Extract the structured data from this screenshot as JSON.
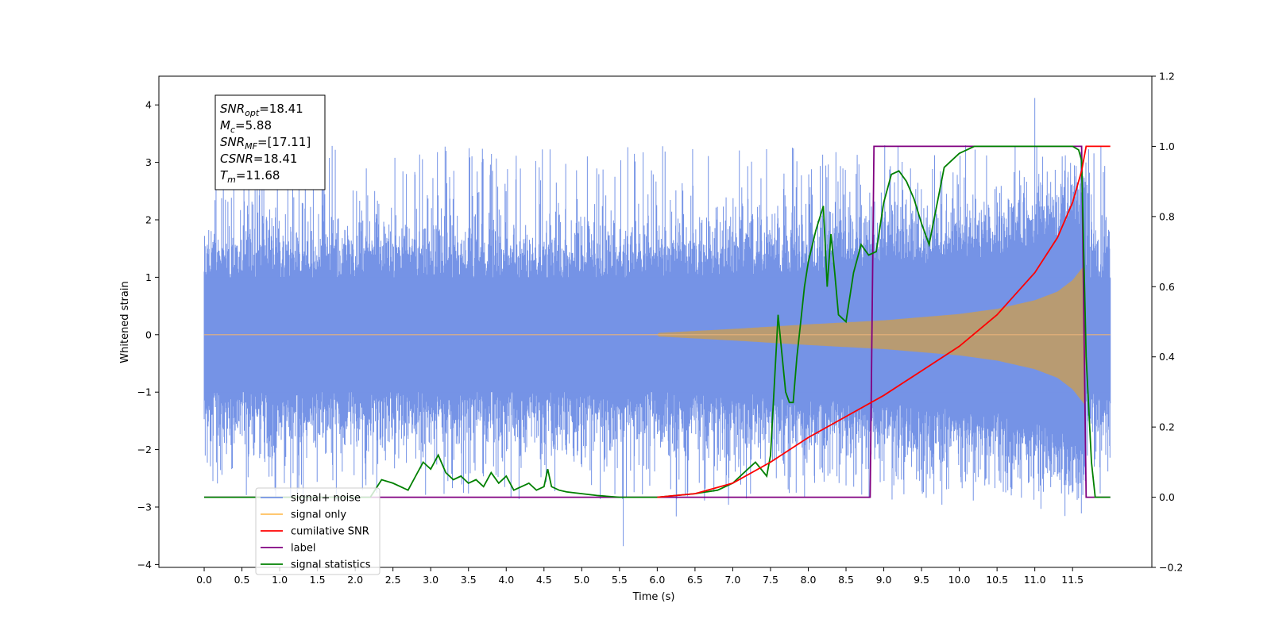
{
  "chart_data": {
    "type": "line",
    "title": "",
    "xlabel": "Time (s)",
    "ylabel": "Whitened strain",
    "ylabel_right": "",
    "xlim": [
      -0.6,
      12.55
    ],
    "ylim": [
      -4.05,
      4.5
    ],
    "ylim_right": [
      -0.2,
      1.2
    ],
    "x_ticks": [
      0,
      0.5,
      1,
      1.5,
      2,
      2.5,
      3,
      3.5,
      4,
      4.5,
      5,
      5.5,
      6,
      6.5,
      7,
      7.5,
      8,
      8.5,
      9,
      9.5,
      10,
      10.5,
      11,
      11.5
    ],
    "x_tick_labels": [
      "0.0",
      "0.5",
      "1.0",
      "1.5",
      "2.0",
      "2.5",
      "3.0",
      "3.5",
      "4.0",
      "4.5",
      "5.0",
      "5.5",
      "6.0",
      "6.5",
      "7.0",
      "7.5",
      "8.0",
      "8.5",
      "9.0",
      "9.5",
      "10.0",
      "10.5",
      "11.0",
      "11.5"
    ],
    "y_ticks": [
      -4,
      -3,
      -2,
      -1,
      0,
      1,
      2,
      3,
      4
    ],
    "y_tick_labels": [
      "−4",
      "−3",
      "−2",
      "−1",
      "0",
      "1",
      "2",
      "3",
      "4"
    ],
    "y_ticks_right": [
      -0.2,
      0.0,
      0.2,
      0.4,
      0.6,
      0.8,
      1.0,
      1.2
    ],
    "y_tick_labels_right": [
      "−0.2",
      "0.0",
      "0.2",
      "0.4",
      "0.6",
      "0.8",
      "1.0",
      "1.2"
    ],
    "grid": false,
    "legend_position": "bottom-left",
    "annotation": [
      {
        "base": "SNR",
        "sub": "opt",
        "rest": "=18.41"
      },
      {
        "base": "M",
        "sub": "c",
        "rest": "=5.88"
      },
      {
        "base": "SNR",
        "sub": "MF",
        "rest": "=[17.11]"
      },
      {
        "base": "CSNR",
        "sub": "",
        "rest": "=18.41"
      },
      {
        "base": "T",
        "sub": "m",
        "rest": "=11.68"
      }
    ],
    "series": [
      {
        "name": "signal+ noise",
        "color": "#7593e6",
        "axis": "left",
        "kind": "noisy_band",
        "t_range": [
          0,
          12.0
        ],
        "envelope": 1.15,
        "spike_max": 4.12
      },
      {
        "name": "signal only",
        "color": "#ffbf5c",
        "axis": "left",
        "kind": "chirp_envelope",
        "t_range": [
          0,
          12.0
        ],
        "merger_time": 11.68,
        "envelope": {
          "t": [
            6.0,
            7.0,
            8.0,
            9.0,
            10.0,
            10.5,
            11.0,
            11.3,
            11.5,
            11.62,
            11.68
          ],
          "amp": [
            0.03,
            0.1,
            0.18,
            0.25,
            0.36,
            0.45,
            0.6,
            0.75,
            0.95,
            1.15,
            1.25
          ]
        }
      },
      {
        "name": "cumilative SNR",
        "color": "#ff0000",
        "axis": "right",
        "x": [
          6.0,
          6.5,
          7.0,
          7.5,
          8.0,
          8.5,
          9.0,
          9.5,
          10.0,
          10.5,
          11.0,
          11.3,
          11.5,
          11.62,
          11.68,
          12.0
        ],
        "y": [
          0.0,
          0.01,
          0.04,
          0.1,
          0.17,
          0.23,
          0.29,
          0.36,
          0.43,
          0.52,
          0.64,
          0.74,
          0.84,
          0.93,
          1.0,
          1.0
        ]
      },
      {
        "name": "label",
        "color": "#800080",
        "axis": "right",
        "x": [
          0.0,
          8.82,
          8.87,
          11.62,
          11.68,
          12.0
        ],
        "y": [
          0.0,
          0.0,
          1.0,
          1.0,
          0.0,
          0.0
        ]
      },
      {
        "name": "signal statistics",
        "color": "#008000",
        "axis": "right",
        "x": [
          0.0,
          2.2,
          2.35,
          2.5,
          2.7,
          2.8,
          2.9,
          3.0,
          3.1,
          3.2,
          3.3,
          3.4,
          3.5,
          3.6,
          3.7,
          3.8,
          3.9,
          4.0,
          4.1,
          4.2,
          4.3,
          4.4,
          4.5,
          4.55,
          4.6,
          4.7,
          4.8,
          5.0,
          5.2,
          5.5,
          6.0,
          6.5,
          6.8,
          7.0,
          7.2,
          7.3,
          7.45,
          7.5,
          7.6,
          7.7,
          7.75,
          7.8,
          7.85,
          7.9,
          7.95,
          8.0,
          8.1,
          8.2,
          8.25,
          8.3,
          8.35,
          8.4,
          8.5,
          8.6,
          8.7,
          8.8,
          8.9,
          9.0,
          9.1,
          9.2,
          9.3,
          9.4,
          9.5,
          9.6,
          9.7,
          9.8,
          10.0,
          10.2,
          10.5,
          10.8,
          11.0,
          11.2,
          11.5,
          11.58,
          11.62,
          11.68,
          11.75,
          11.8,
          12.0
        ],
        "y": [
          0.0,
          0.0,
          0.05,
          0.04,
          0.02,
          0.06,
          0.1,
          0.08,
          0.12,
          0.07,
          0.05,
          0.06,
          0.04,
          0.05,
          0.03,
          0.07,
          0.04,
          0.06,
          0.02,
          0.03,
          0.04,
          0.02,
          0.03,
          0.08,
          0.03,
          0.02,
          0.015,
          0.01,
          0.005,
          0.0,
          0.0,
          0.01,
          0.02,
          0.04,
          0.08,
          0.1,
          0.06,
          0.12,
          0.52,
          0.3,
          0.27,
          0.27,
          0.4,
          0.5,
          0.6,
          0.67,
          0.76,
          0.83,
          0.6,
          0.75,
          0.64,
          0.52,
          0.5,
          0.64,
          0.72,
          0.69,
          0.7,
          0.84,
          0.92,
          0.93,
          0.9,
          0.85,
          0.78,
          0.72,
          0.83,
          0.94,
          0.98,
          1.0,
          1.0,
          1.0,
          1.0,
          1.0,
          1.0,
          0.99,
          0.96,
          0.4,
          0.1,
          0.0,
          0.0
        ]
      }
    ]
  }
}
